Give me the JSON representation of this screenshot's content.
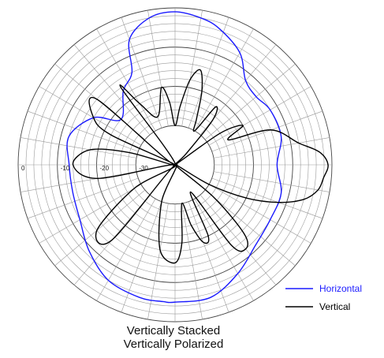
{
  "chart_data": {
    "type": "polar",
    "r_axis": {
      "ticks": [
        "0",
        "-10",
        "-20",
        "-30"
      ],
      "range": [
        -40,
        0
      ],
      "unit": ""
    },
    "angle_grid_step_deg": 10,
    "grid": true,
    "legend_position": "bottom-right",
    "title_lines": [
      "Vertically Stacked",
      "Vertically Polarized"
    ],
    "series": [
      {
        "name": "Horizontal",
        "color": "#1a1aff",
        "theta": [
          0,
          15,
          30,
          40,
          50,
          60,
          72,
          80,
          90,
          100,
          110,
          115,
          125,
          140,
          150,
          165,
          180,
          195,
          210,
          225,
          240,
          255,
          265,
          270,
          285,
          300,
          315,
          330,
          345,
          360
        ],
        "r": [
          -14,
          -12,
          -12,
          -13,
          -12,
          -7,
          -3.5,
          -2,
          -1,
          -2,
          -6,
          -14,
          -17,
          -22,
          -16,
          -12,
          -13,
          -13,
          -12,
          -9,
          -6,
          -5,
          -5,
          -5,
          -5,
          -8,
          -11,
          -12,
          -12,
          -14
        ]
      },
      {
        "name": "Vertical",
        "color": "#000000",
        "theta": [
          0,
          5,
          10,
          20,
          25,
          30,
          35,
          40,
          45,
          50,
          55,
          60,
          65,
          70,
          75,
          80,
          85,
          90,
          95,
          100,
          110,
          120,
          125,
          130,
          140,
          150,
          155,
          160,
          165,
          170,
          180,
          190,
          200,
          210,
          220,
          230,
          240,
          250,
          260,
          270,
          275,
          280,
          285,
          290,
          295,
          300,
          305,
          310,
          315,
          320,
          325,
          330,
          335,
          340,
          345,
          350,
          355,
          360
        ],
        "r": [
          -1,
          -3,
          -8,
          -14,
          -25,
          -20,
          -26,
          -40,
          -36,
          -25,
          -22,
          -30,
          -27,
          -20,
          -15,
          -18,
          -25,
          -30,
          -24,
          -20,
          -27,
          -22,
          -16,
          -40,
          -14,
          -16,
          -22,
          -40,
          -28,
          -18,
          -14,
          -20,
          -40,
          -28,
          -14,
          -15,
          -40,
          -30,
          -18,
          -15,
          -20,
          -30,
          -24,
          -19,
          -20,
          -32,
          -15,
          -12,
          -15,
          -27,
          -40,
          -30,
          -20,
          -12,
          -6,
          -3,
          -2,
          -1
        ]
      }
    ]
  }
}
